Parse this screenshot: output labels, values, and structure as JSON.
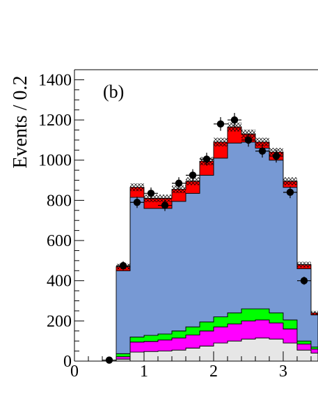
{
  "chart_data": {
    "type": "area",
    "panel_label": "(b)",
    "ylabel": "Events / 0.2",
    "xlabel": "",
    "xlim": [
      0,
      3.5
    ],
    "ylim": [
      0,
      1450
    ],
    "grid": false,
    "x_ticks": [
      "0",
      "1",
      "2",
      "3"
    ],
    "y_ticks": [
      "0",
      "200",
      "400",
      "600",
      "800",
      "1000",
      "1200",
      "1400"
    ],
    "bin_edges": [
      0.6,
      0.8,
      1.0,
      1.2,
      1.4,
      1.6,
      1.8,
      2.0,
      2.2,
      2.4,
      2.6,
      2.8,
      3.0,
      3.2,
      3.4,
      3.5
    ],
    "series": [
      {
        "color": "#e6e6e6",
        "values": [
          10,
          45,
          48,
          50,
          55,
          65,
          75,
          90,
          100,
          110,
          115,
          110,
          90,
          55,
          40
        ]
      },
      {
        "color": "#ff00ff",
        "values": [
          12,
          50,
          50,
          55,
          60,
          65,
          75,
          80,
          85,
          90,
          90,
          80,
          70,
          30,
          20
        ]
      },
      {
        "color": "#00ff00",
        "values": [
          15,
          25,
          30,
          30,
          35,
          40,
          45,
          50,
          55,
          60,
          55,
          50,
          45,
          15,
          10
        ]
      },
      {
        "color": "#7799d4",
        "values": [
          413,
          695,
          632,
          625,
          645,
          665,
          730,
          790,
          845,
          830,
          800,
          760,
          660,
          360,
          160
        ]
      },
      {
        "color": "#ff0000",
        "values": [
          20,
          50,
          50,
          50,
          60,
          60,
          70,
          80,
          80,
          40,
          30,
          40,
          30,
          20,
          10
        ]
      }
    ],
    "data_points": {
      "marker": "filled-circle",
      "x": [
        0.5,
        0.7,
        0.9,
        1.1,
        1.3,
        1.5,
        1.7,
        1.9,
        2.1,
        2.3,
        2.5,
        2.7,
        2.9,
        3.1,
        3.3
      ],
      "y": [
        5,
        475,
        790,
        835,
        775,
        885,
        925,
        1005,
        1180,
        1200,
        1100,
        1045,
        1020,
        840,
        400
      ],
      "err": [
        3,
        22,
        28,
        29,
        28,
        30,
        30,
        32,
        34,
        35,
        33,
        32,
        32,
        29,
        20
      ]
    }
  }
}
